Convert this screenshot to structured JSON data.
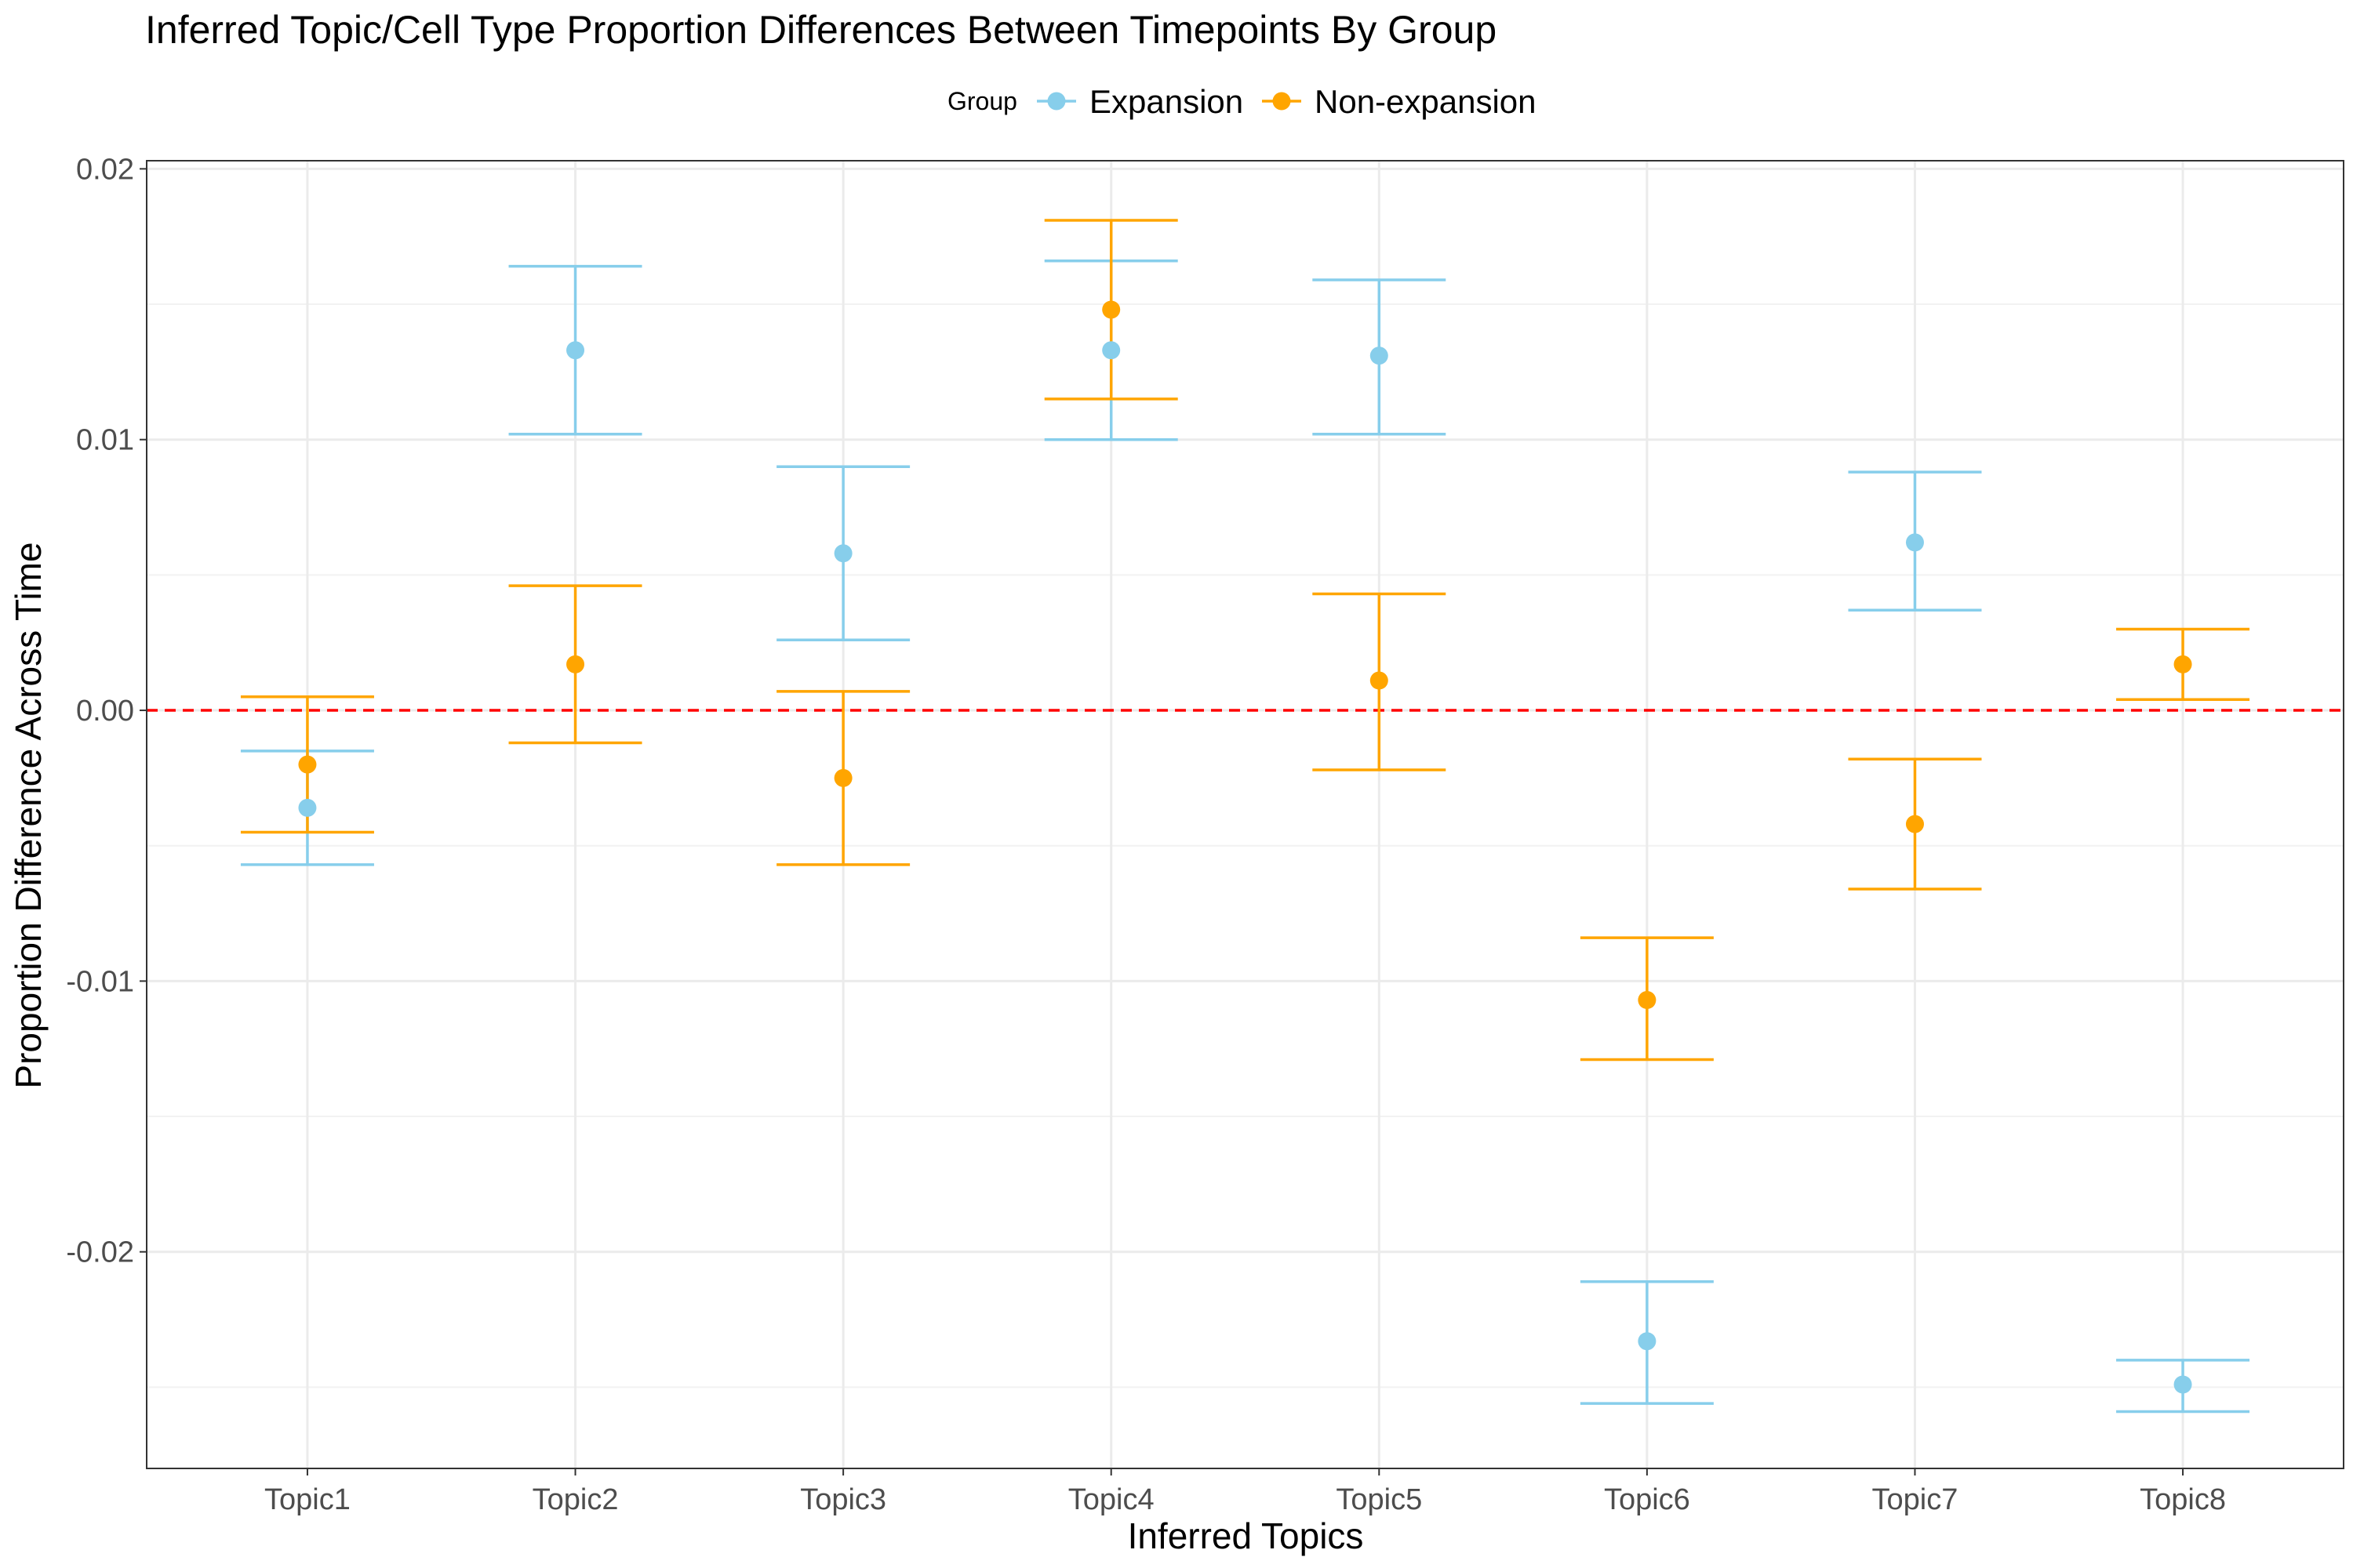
{
  "chart_data": {
    "type": "scatter",
    "subtype": "point-with-errorbars",
    "title": "Inferred Topic/Cell Type Proportion Differences Between Timepoints By Group",
    "xlabel": "Inferred Topics",
    "ylabel": "Proportion Difference Across Time",
    "categories": [
      "Topic1",
      "Topic2",
      "Topic3",
      "Topic4",
      "Topic5",
      "Topic6",
      "Topic7",
      "Topic8"
    ],
    "ylim": [
      -0.028,
      0.0203
    ],
    "yticks": [
      -0.02,
      -0.01,
      0.0,
      0.01,
      0.02
    ],
    "ytick_labels": [
      "-0.02",
      "-0.01",
      "0.00",
      "0.01",
      "0.02"
    ],
    "grid": true,
    "reference_line": {
      "y": 0.0,
      "color": "#ff0000",
      "style": "dashed"
    },
    "legend": {
      "title": "Group",
      "position": "top",
      "entries": [
        "Expansion",
        "Non-expansion"
      ]
    },
    "series": [
      {
        "name": "Expansion",
        "color": "#87ceeb",
        "values": [
          -0.0036,
          0.0133,
          0.0058,
          0.0133,
          0.0131,
          -0.0233,
          0.0062,
          -0.0249
        ],
        "lower": [
          -0.0057,
          0.0102,
          0.0026,
          0.01,
          0.0102,
          -0.0256,
          0.0037,
          -0.0259
        ],
        "upper": [
          -0.0015,
          0.0164,
          0.009,
          0.0166,
          0.0159,
          -0.0211,
          0.0088,
          -0.024
        ]
      },
      {
        "name": "Non-expansion",
        "color": "#ffa500",
        "values": [
          -0.002,
          0.0017,
          -0.0025,
          0.0148,
          0.0011,
          -0.0107,
          -0.0042,
          0.0017
        ],
        "lower": [
          -0.0045,
          -0.0012,
          -0.0057,
          0.0115,
          -0.0022,
          -0.0129,
          -0.0066,
          0.0004
        ],
        "upper": [
          0.0005,
          0.0046,
          0.0007,
          0.0181,
          0.0043,
          -0.0084,
          -0.0018,
          0.003
        ]
      }
    ]
  }
}
